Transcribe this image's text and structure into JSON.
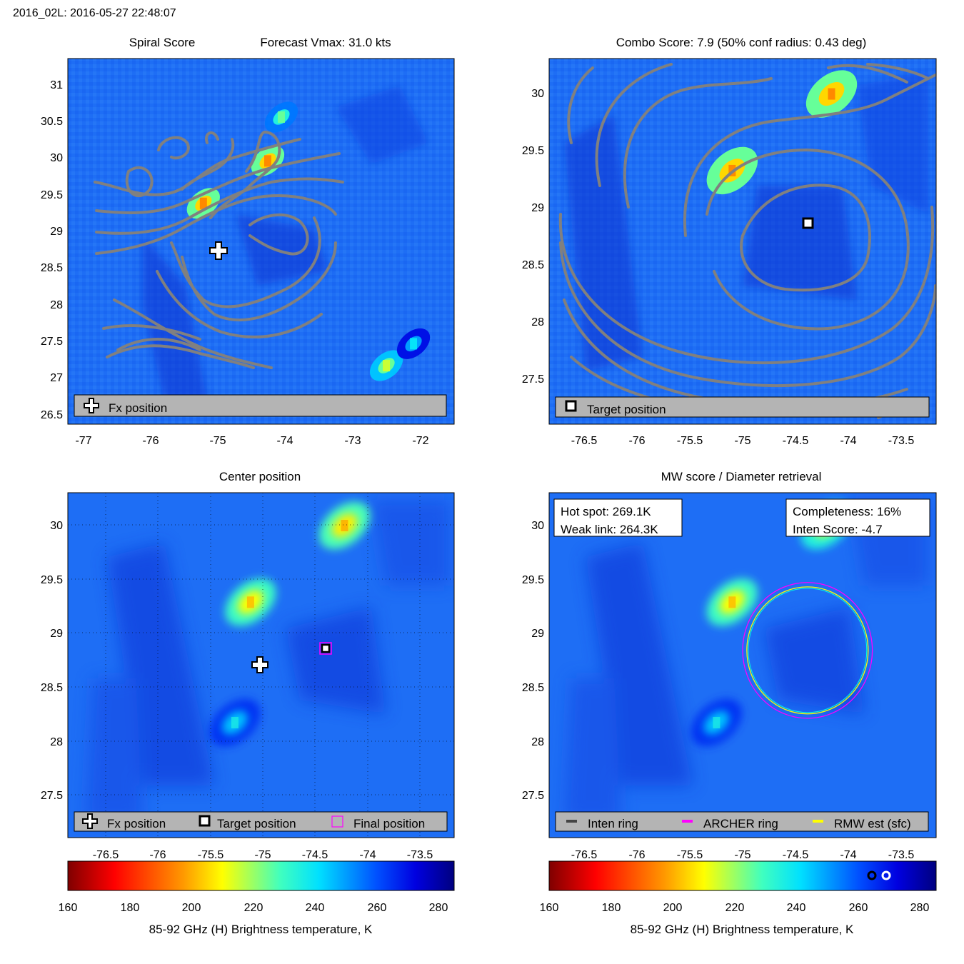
{
  "page_title": "2016_02L: 2016-05-27 22:48:07",
  "colors": {
    "contour": "#808080",
    "legend_bg": "#b4b4b4",
    "background_field": "#1e6ef5",
    "warm_spot": "#ff3c00",
    "archer_ring": "#ff00ff",
    "rmw_ring": "#ffff00",
    "inten_ring": "#444444"
  },
  "colorbar": {
    "ticks": [
      "160",
      "180",
      "200",
      "220",
      "240",
      "260",
      "280"
    ],
    "label": "85-92 GHz (H) Brightness temperature, K",
    "range": [
      160,
      285
    ],
    "colormap": "jet reversed (dark red = cold, dark blue = warm)"
  },
  "panels": {
    "spiral": {
      "title_left": "Spiral Score",
      "title_right": "Forecast Vmax: 31.0 kts",
      "legend": {
        "fx": "Fx position"
      }
    },
    "combo": {
      "title": "Combo Score: 7.9  (50% conf radius: 0.43 deg)",
      "legend": {
        "target": "Target position"
      }
    },
    "center": {
      "title": "Center position",
      "legend": {
        "fx": "Fx position",
        "target": "Target position",
        "final": "Final position"
      }
    },
    "mw": {
      "title": "MW score / Diameter retrieval",
      "box_left": {
        "hot_spot": "Hot spot: 269.1K",
        "weak_link": "Weak link: 264.3K"
      },
      "box_right": {
        "completeness": "Completeness: 16%",
        "inten_score": "Inten Score: -4.7"
      },
      "legend": {
        "inten": "Inten ring",
        "archer": "ARCHER ring",
        "rmw": "RMW est (sfc)"
      },
      "colorbar_markers": {
        "hot_spot_K": 269.1,
        "weak_link_K": 264.3
      }
    }
  },
  "chart_data": [
    {
      "type": "heatmap",
      "title": "Spiral Score",
      "subtitle": "Forecast Vmax: 31.0 kts",
      "xlim": [
        -77.2,
        -71.5
      ],
      "ylim": [
        26.4,
        31.4
      ],
      "x_ticks": [
        "-77",
        "-76",
        "-75",
        "-74",
        "-73",
        "-72"
      ],
      "y_ticks": [
        "26.5",
        "27",
        "27.5",
        "28",
        "28.5",
        "29",
        "29.5",
        "30",
        "30.5",
        "31"
      ],
      "overlay": "spiral contours",
      "markers": [
        {
          "name": "Fx position",
          "lon": -75.0,
          "lat": 28.72
        }
      ],
      "cold_spots": [
        {
          "lon": -75.2,
          "lat": 29.42,
          "tb": 195
        },
        {
          "lon": -74.25,
          "lat": 30.0,
          "tb": 195
        },
        {
          "lon": -74.05,
          "lat": 30.6,
          "tb": 225
        },
        {
          "lon": -72.5,
          "lat": 27.2,
          "tb": 215
        },
        {
          "lon": -72.1,
          "lat": 27.5,
          "tb": 240
        }
      ]
    },
    {
      "type": "heatmap",
      "title": "Combo Score: 7.9  (50% conf radius: 0.43 deg)",
      "xlim": [
        -76.85,
        -73.15
      ],
      "ylim": [
        27.2,
        30.3
      ],
      "x_ticks": [
        "-76.5",
        "-76",
        "-75.5",
        "-75",
        "-74.5",
        "-74",
        "-73.5"
      ],
      "y_ticks": [
        "27.5",
        "28",
        "28.5",
        "29",
        "29.5",
        "30"
      ],
      "overlay": "combo score contours",
      "markers": [
        {
          "name": "Target position",
          "lon": -74.38,
          "lat": 28.86
        }
      ],
      "cold_spots": [
        {
          "lon": -75.1,
          "lat": 29.35,
          "tb": 195
        },
        {
          "lon": -74.15,
          "lat": 30.0,
          "tb": 195
        }
      ]
    },
    {
      "type": "heatmap",
      "title": "Center position",
      "xlim": [
        -76.85,
        -73.15
      ],
      "ylim": [
        27.15,
        30.3
      ],
      "x_ticks": [
        "-76.5",
        "-76",
        "-75.5",
        "-75",
        "-74.5",
        "-74",
        "-73.5"
      ],
      "y_ticks": [
        "27.5",
        "28",
        "28.5",
        "29",
        "29.5",
        "30"
      ],
      "grid": true,
      "markers": [
        {
          "name": "Fx position",
          "lon": -75.0,
          "lat": 28.7
        },
        {
          "name": "Target position",
          "lon": -74.38,
          "lat": 28.86
        },
        {
          "name": "Final position",
          "lon": -74.38,
          "lat": 28.86
        }
      ],
      "cold_spots": [
        {
          "lon": -75.1,
          "lat": 29.3,
          "tb": 200
        },
        {
          "lon": -74.2,
          "lat": 30.0,
          "tb": 198
        },
        {
          "lon": -75.25,
          "lat": 28.2,
          "tb": 235
        }
      ]
    },
    {
      "type": "heatmap",
      "title": "MW score / Diameter retrieval",
      "xlim": [
        -76.85,
        -73.15
      ],
      "ylim": [
        27.15,
        30.3
      ],
      "x_ticks": [
        "-76.5",
        "-76",
        "-75.5",
        "-75",
        "-74.5",
        "-74",
        "-73.5"
      ],
      "y_ticks": [
        "27.5",
        "28",
        "28.5",
        "29",
        "29.5",
        "30"
      ],
      "rings": [
        {
          "name": "ARCHER ring",
          "lon": -74.38,
          "lat": 28.86,
          "radius_deg": 0.62
        },
        {
          "name": "RMW est (sfc)",
          "lon": -74.38,
          "lat": 28.86,
          "radius_deg": 0.58
        }
      ],
      "cold_spots": [
        {
          "lon": -75.1,
          "lat": 29.3,
          "tb": 200
        },
        {
          "lon": -74.2,
          "lat": 30.0,
          "tb": 205
        },
        {
          "lon": -75.25,
          "lat": 28.2,
          "tb": 235
        }
      ]
    }
  ]
}
